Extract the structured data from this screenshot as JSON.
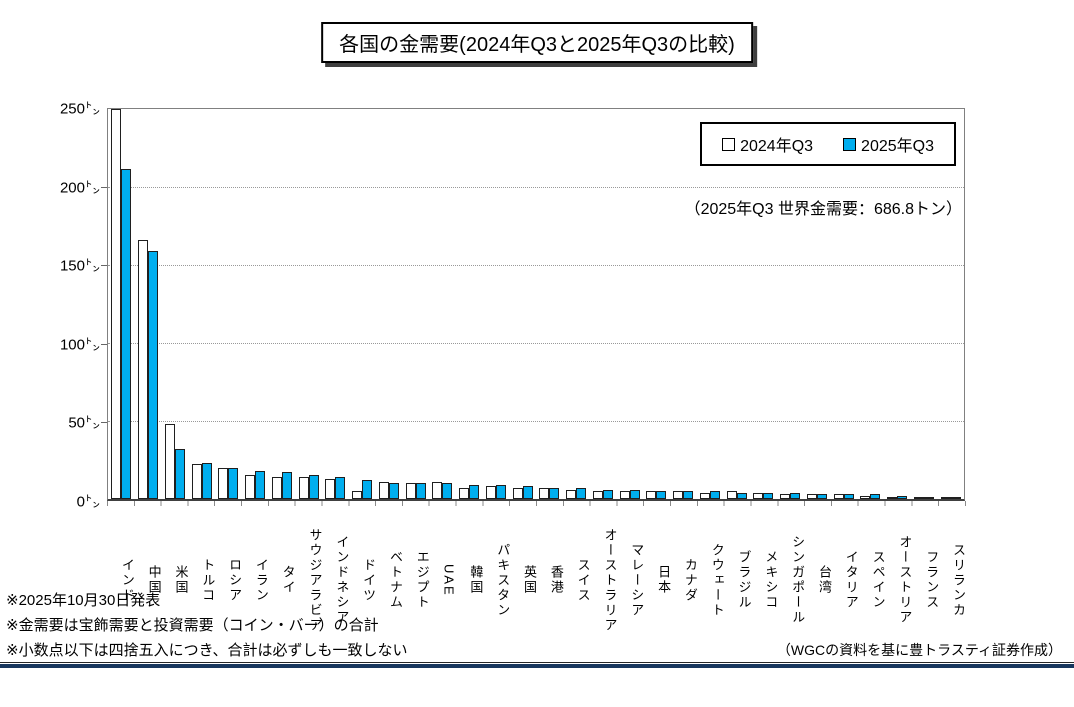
{
  "title": "各国の金需要(2024年Q3と2025年Q3の比較)",
  "legend": {
    "series_2024_label": "2024年Q3",
    "series_2025_label": "2025年Q3"
  },
  "annotation": "（2025年Q3  世界金需要：686.8トン）",
  "y_axis": {
    "unit": "㌧",
    "tick_values": [
      250,
      200,
      150,
      100,
      50,
      0
    ]
  },
  "footnotes": [
    "※2025年10月30日発表",
    "※金需要は宝飾需要と投資需要（コイン・バー）の合計",
    "※小数点以下は四捨五入につき、合計は必ずしも一致しない"
  ],
  "credit": "（WGCの資料を基に豊トラスティ証券作成）",
  "colors": {
    "series_2024": "#FFFFFF",
    "series_2025": "#00AEEF",
    "bar_border": "#1F1F1F",
    "bottom_rule": "#17365D"
  },
  "chart_data": {
    "type": "bar",
    "title": "各国の金需要(2024年Q3と2025年Q3の比較)",
    "unit": "トン",
    "ylim": [
      0,
      250
    ],
    "ytick_interval": 50,
    "grid": "horizontal-dotted",
    "legend_position": "top-right",
    "annotation": "2025年Q3 世界金需要：686.8トン",
    "categories": [
      "インド",
      "中国",
      "米国",
      "トルコ",
      "ロシア",
      "イラン",
      "タイ",
      "サウジアラビア",
      "インドネシア",
      "ドイツ",
      "ベトナム",
      "エジプト",
      "UAE",
      "韓国",
      "パキスタン",
      "英国",
      "香港",
      "スイス",
      "オーストラリア",
      "マレーシア",
      "日本",
      "カナダ",
      "クウェート",
      "ブラジル",
      "メキシコ",
      "シンガポール",
      "台湾",
      "イタリア",
      "スペイン",
      "オーストリア",
      "フランス",
      "スリランカ"
    ],
    "series": [
      {
        "name": "2024年Q3",
        "values": [
          248,
          165,
          48,
          22,
          20,
          15,
          14,
          14,
          13,
          5,
          11,
          10,
          11,
          7,
          8,
          7,
          7,
          6,
          5,
          5,
          5,
          5,
          4,
          5,
          4,
          3,
          3,
          3,
          2,
          1,
          1,
          1
        ]
      },
      {
        "name": "2025年Q3",
        "values": [
          210,
          158,
          32,
          23,
          20,
          18,
          17,
          15,
          14,
          12,
          10,
          10,
          10,
          9,
          9,
          8,
          7,
          7,
          6,
          6,
          5,
          5,
          5,
          4,
          4,
          4,
          3,
          3,
          3,
          2,
          1,
          1
        ]
      }
    ]
  }
}
